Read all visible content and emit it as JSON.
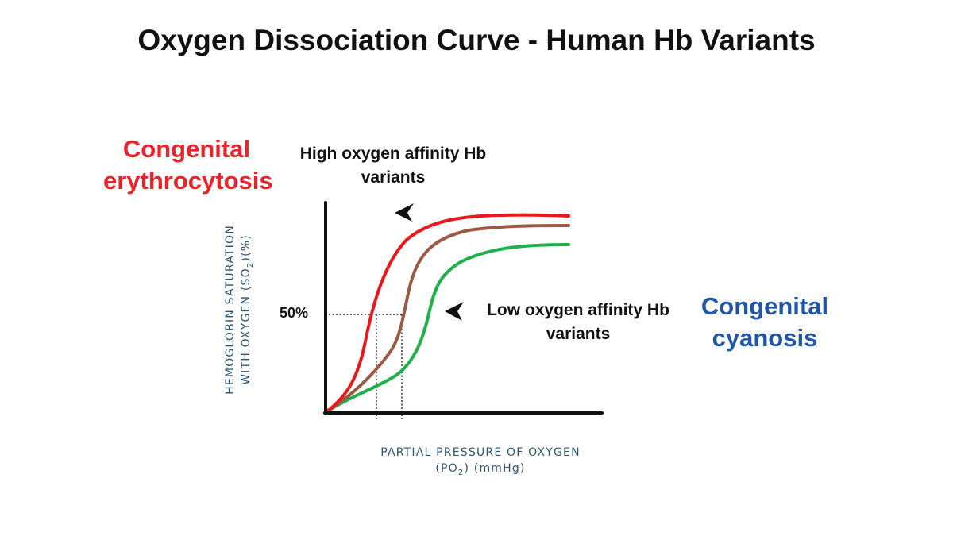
{
  "title": "Oxygen Dissociation Curve - Human Hb Variants",
  "labels": {
    "left_condition": "Congenital erythrocytosis",
    "right_condition": "Congenital cyanosis",
    "high_affinity": "High oxygen affinity  Hb\nvariants",
    "low_affinity": "Low oxygen affinity  Hb\nvariants",
    "fifty_percent": "50%"
  },
  "axes": {
    "x_line1": "PARTIAL PRESSURE OF OXYGEN",
    "x_line2_main": "(PO",
    "x_line2_sub": "2",
    "x_line2_end": ") (mmHg)",
    "y_line1": "HEMOGLOBIN SATURATION",
    "y_line2_main": "WITH OXYGEN (SO",
    "y_line2_sub": "2",
    "y_line2_end": ")(%)"
  },
  "colors": {
    "left_condition": "#e8232a",
    "right_condition": "#1f56a8",
    "curve_high": "#e8181c",
    "curve_normal": "#9a5a46",
    "curve_low": "#1db04b",
    "axis": "#111111"
  },
  "icons": {
    "arrow_high": "arrowhead-icon",
    "arrow_low": "arrowhead-icon"
  }
}
